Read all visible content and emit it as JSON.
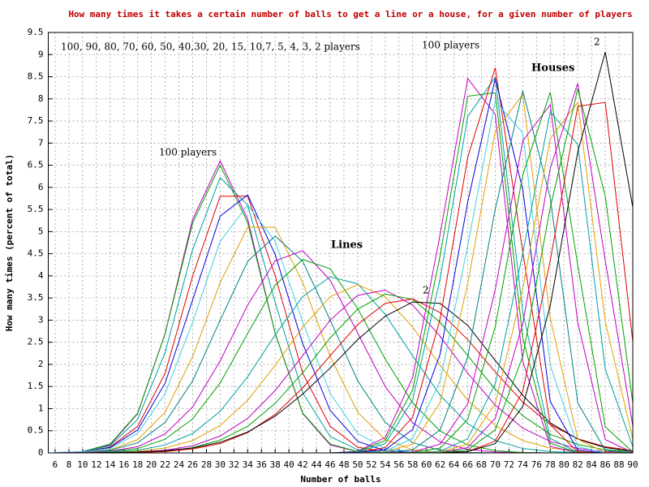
{
  "chart_data": {
    "type": "line",
    "title": "How many times it takes a certain number of balls to get a line or a house, for a given number of players",
    "x_label": "Number of balls",
    "y_label": "How many times (percent of total)",
    "annotations": [
      "100, 90, 80, 70, 60, 50, 40,30, 20, 15, 10,7, 5, 4, 3, 2 players",
      "100 players",
      "100 players",
      "Lines",
      "Houses",
      "2",
      "2"
    ],
    "grid": true,
    "xlim": [
      5,
      90
    ],
    "xticks": [
      6,
      8,
      10,
      12,
      14,
      16,
      18,
      20,
      22,
      24,
      26,
      28,
      30,
      32,
      34,
      36,
      38,
      40,
      42,
      44,
      46,
      48,
      50,
      52,
      54,
      56,
      58,
      60,
      62,
      64,
      66,
      68,
      70,
      72,
      74,
      76,
      78,
      80,
      82,
      84,
      86,
      88,
      90
    ],
    "ylim": [
      0,
      9.5
    ],
    "yticks": [
      0,
      0.5,
      1,
      1.5,
      2,
      2.5,
      3,
      3.5,
      4,
      4.5,
      5,
      5.5,
      6,
      6.5,
      7,
      7.5,
      8,
      8.5,
      9,
      9.5
    ],
    "x": [
      6,
      10,
      14,
      18,
      22,
      26,
      30,
      34,
      38,
      42,
      46,
      50,
      54,
      58,
      62,
      66,
      70,
      74,
      78,
      82,
      86,
      90
    ],
    "series": [
      {
        "color": "#c000c0",
        "values": [
          0,
          0.03,
          0.18,
          0.89,
          2.7,
          5.28,
          6.6,
          5.28,
          2.7,
          0.89,
          0.18,
          0.03,
          0,
          0,
          0,
          0,
          0,
          0,
          0,
          0,
          0,
          0
        ]
      },
      {
        "color": "#00a000",
        "values": [
          0,
          0.03,
          0.2,
          0.9,
          2.7,
          5.2,
          6.5,
          5.2,
          2.7,
          0.9,
          0.2,
          0.03,
          0,
          0,
          0,
          0,
          0,
          0,
          0,
          0,
          0,
          0
        ]
      },
      {
        "color": "#00a0a0",
        "values": [
          0,
          0.03,
          0.16,
          0.76,
          2.27,
          4.6,
          6.22,
          5.6,
          3.4,
          1.36,
          0.37,
          0.07,
          0.01,
          0,
          0,
          0,
          0,
          0,
          0,
          0,
          0,
          0
        ]
      },
      {
        "color": "#e00000",
        "values": [
          0,
          0.02,
          0.13,
          0.6,
          1.8,
          4.0,
          5.8,
          5.8,
          4.0,
          1.8,
          0.6,
          0.13,
          0.02,
          0,
          0,
          0,
          0,
          0,
          0,
          0,
          0,
          0
        ]
      },
      {
        "color": "#0000e0",
        "values": [
          0.01,
          0.02,
          0.12,
          0.52,
          1.58,
          3.46,
          5.35,
          5.83,
          4.48,
          2.47,
          0.96,
          0.26,
          0.05,
          0.01,
          0,
          0,
          0,
          0,
          0,
          0,
          0,
          0
        ]
      },
      {
        "color": "#40d0e0",
        "values": [
          0.01,
          0.02,
          0.1,
          0.44,
          1.34,
          2.96,
          4.78,
          5.6,
          4.78,
          2.96,
          1.34,
          0.44,
          0.1,
          0.02,
          0.01,
          0,
          0,
          0,
          0,
          0,
          0,
          0
        ]
      },
      {
        "color": "#e0a000",
        "values": [
          0,
          0.01,
          0.07,
          0.3,
          0.92,
          2.18,
          3.85,
          5.1,
          5.1,
          3.85,
          2.18,
          0.92,
          0.3,
          0.07,
          0.01,
          0,
          0,
          0,
          0,
          0,
          0,
          0
        ]
      },
      {
        "color": "#008080",
        "values": [
          0,
          0.01,
          0.06,
          0.23,
          0.69,
          1.63,
          3.0,
          4.33,
          4.9,
          4.33,
          3.0,
          1.63,
          0.69,
          0.23,
          0.06,
          0.01,
          0,
          0,
          0,
          0,
          0,
          0
        ]
      },
      {
        "color": "#c000c0",
        "values": [
          0,
          0.01,
          0.04,
          0.14,
          0.43,
          1.04,
          2.08,
          3.34,
          4.34,
          4.57,
          3.9,
          2.71,
          1.5,
          0.68,
          0.25,
          0.08,
          0.02,
          0.01,
          0,
          0,
          0,
          0
        ]
      },
      {
        "color": "#00a000",
        "values": [
          0,
          0,
          0.03,
          0.1,
          0.31,
          0.77,
          1.58,
          2.7,
          3.79,
          4.37,
          4.16,
          3.26,
          2.12,
          1.13,
          0.49,
          0.18,
          0.05,
          0.01,
          0,
          0,
          0,
          0
        ]
      },
      {
        "color": "#00a0a0",
        "values": [
          0,
          0,
          0.02,
          0.06,
          0.18,
          0.44,
          0.94,
          1.72,
          2.67,
          3.53,
          3.98,
          3.82,
          3.13,
          2.19,
          1.3,
          0.66,
          0.28,
          0.1,
          0.03,
          0.01,
          0,
          0
        ]
      },
      {
        "color": "#e0a000",
        "values": [
          0,
          0,
          0.01,
          0.04,
          0.11,
          0.28,
          0.62,
          1.19,
          1.98,
          2.84,
          3.53,
          3.8,
          3.53,
          2.84,
          1.98,
          1.19,
          0.62,
          0.28,
          0.11,
          0.04,
          0.01,
          0
        ]
      },
      {
        "color": "#c000c0",
        "values": [
          0,
          0,
          0.01,
          0.02,
          0.06,
          0.16,
          0.38,
          0.78,
          1.41,
          2.2,
          3.0,
          3.56,
          3.68,
          3.34,
          2.63,
          1.8,
          1.08,
          0.56,
          0.26,
          0.1,
          0.03,
          0.01
        ]
      },
      {
        "color": "#00a000",
        "values": [
          0,
          0,
          0,
          0.02,
          0.04,
          0.12,
          0.29,
          0.6,
          1.12,
          1.81,
          2.6,
          3.25,
          3.59,
          3.47,
          2.95,
          2.2,
          1.44,
          0.84,
          0.42,
          0.19,
          0.07,
          0.03
        ]
      },
      {
        "color": "#e00000",
        "values": [
          0,
          0,
          0,
          0.01,
          0.03,
          0.09,
          0.21,
          0.46,
          0.87,
          1.47,
          2.2,
          2.9,
          3.38,
          3.48,
          3.17,
          2.56,
          1.83,
          1.15,
          0.64,
          0.32,
          0.14,
          0.05
        ]
      },
      {
        "color": "#000000",
        "values": [
          0,
          0,
          0.01,
          0.02,
          0.05,
          0.11,
          0.24,
          0.47,
          0.83,
          1.33,
          1.92,
          2.56,
          3.09,
          3.41,
          3.38,
          2.88,
          2.09,
          1.3,
          0.68,
          0.31,
          0.12,
          0.04
        ]
      },
      {
        "color": "#c000c0",
        "values": [
          0,
          0,
          0,
          0,
          0,
          0,
          0,
          0,
          0,
          0,
          0,
          0.04,
          0.35,
          1.71,
          4.95,
          8.46,
          7.65,
          2.07,
          0.15,
          0,
          0,
          0
        ]
      },
      {
        "color": "#00a000",
        "values": [
          0,
          0,
          0,
          0,
          0,
          0,
          0,
          0,
          0,
          0,
          0,
          0.03,
          0.28,
          1.43,
          4.47,
          8.06,
          8.14,
          2.6,
          0.22,
          0,
          0,
          0
        ]
      },
      {
        "color": "#00a0a0",
        "values": [
          0,
          0,
          0,
          0,
          0,
          0,
          0,
          0,
          0,
          0,
          0,
          0.02,
          0.21,
          1.2,
          3.95,
          7.6,
          8.49,
          3.19,
          0.33,
          0.01,
          0,
          0
        ]
      },
      {
        "color": "#e00000",
        "values": [
          0,
          0,
          0,
          0,
          0,
          0,
          0,
          0,
          0,
          0,
          0,
          0.01,
          0.12,
          0.81,
          3.04,
          6.68,
          8.7,
          4.54,
          0.64,
          0.02,
          0,
          0
        ]
      },
      {
        "color": "#0000e0",
        "values": [
          0,
          0,
          0,
          0,
          0,
          0,
          0,
          0,
          0,
          0,
          0,
          0.01,
          0.07,
          0.53,
          2.24,
          5.67,
          8.46,
          5.95,
          1.16,
          0.06,
          0,
          0
        ]
      },
      {
        "color": "#40d0e0",
        "values": [
          0,
          0,
          0,
          0,
          0,
          0,
          0,
          0,
          0,
          0,
          0,
          0,
          0.04,
          0.33,
          1.63,
          4.69,
          7.95,
          7.23,
          1.98,
          0.14,
          0,
          0
        ]
      },
      {
        "color": "#e0a000",
        "values": [
          0,
          0,
          0,
          0,
          0,
          0,
          0,
          0,
          0,
          0,
          0,
          0,
          0.02,
          0.2,
          1.14,
          3.82,
          7.27,
          8.1,
          3.04,
          0.31,
          0.01,
          0
        ]
      },
      {
        "color": "#008080",
        "values": [
          0,
          0,
          0,
          0,
          0,
          0,
          0,
          0,
          0,
          0,
          0,
          0,
          0.01,
          0.07,
          0.52,
          2.17,
          5.51,
          8.18,
          5.76,
          1.13,
          0.06,
          0
        ]
      },
      {
        "color": "#c000c0",
        "values": [
          0,
          0,
          0,
          0,
          0,
          0,
          0,
          0,
          0,
          0,
          0,
          0,
          0,
          0.02,
          0.2,
          1.11,
          3.69,
          7.05,
          7.87,
          2.95,
          0.3,
          0.01
        ]
      },
      {
        "color": "#00a000",
        "values": [
          0,
          0,
          0,
          0,
          0,
          0,
          0,
          0,
          0,
          0,
          0,
          0,
          0,
          0.01,
          0.11,
          0.76,
          2.85,
          6.28,
          8.15,
          4.24,
          0.59,
          0.02
        ]
      },
      {
        "color": "#00a0a0",
        "values": [
          0,
          0,
          0,
          0,
          0,
          0,
          0,
          0,
          0,
          0,
          0,
          0,
          0,
          0,
          0.04,
          0.32,
          1.56,
          4.51,
          7.71,
          6.97,
          1.89,
          0.14
        ]
      },
      {
        "color": "#e0a000",
        "values": [
          0,
          0,
          0,
          0,
          0,
          0,
          0,
          0,
          0,
          0,
          0,
          0,
          0,
          0,
          0.02,
          0.2,
          1.11,
          3.71,
          7.1,
          7.92,
          2.97,
          0.31
        ]
      },
      {
        "color": "#c000c0",
        "values": [
          0,
          0,
          0,
          0,
          0,
          0,
          0,
          0,
          0,
          0,
          0,
          0,
          0,
          0,
          0.01,
          0.12,
          0.78,
          2.92,
          6.43,
          8.35,
          4.34,
          0.61
        ]
      },
      {
        "color": "#00a000",
        "values": [
          0,
          0,
          0,
          0,
          0,
          0,
          0,
          0,
          0,
          0,
          0,
          0,
          0,
          0,
          0.01,
          0.07,
          0.52,
          2.18,
          5.54,
          8.23,
          5.8,
          1.13
        ]
      },
      {
        "color": "#e00000",
        "values": [
          0,
          0,
          0,
          0,
          0,
          0,
          0,
          0,
          0,
          0,
          0,
          0,
          0,
          0,
          0,
          0.03,
          0.27,
          1.39,
          4.35,
          7.83,
          7.92,
          2.52
        ]
      },
      {
        "color": "#000000",
        "values": [
          0,
          0,
          0,
          0,
          0,
          0,
          0,
          0,
          0,
          0,
          0,
          0,
          0,
          0,
          0,
          0.03,
          0.21,
          1.05,
          3.33,
          6.8,
          9.06,
          5.55
        ]
      }
    ]
  }
}
